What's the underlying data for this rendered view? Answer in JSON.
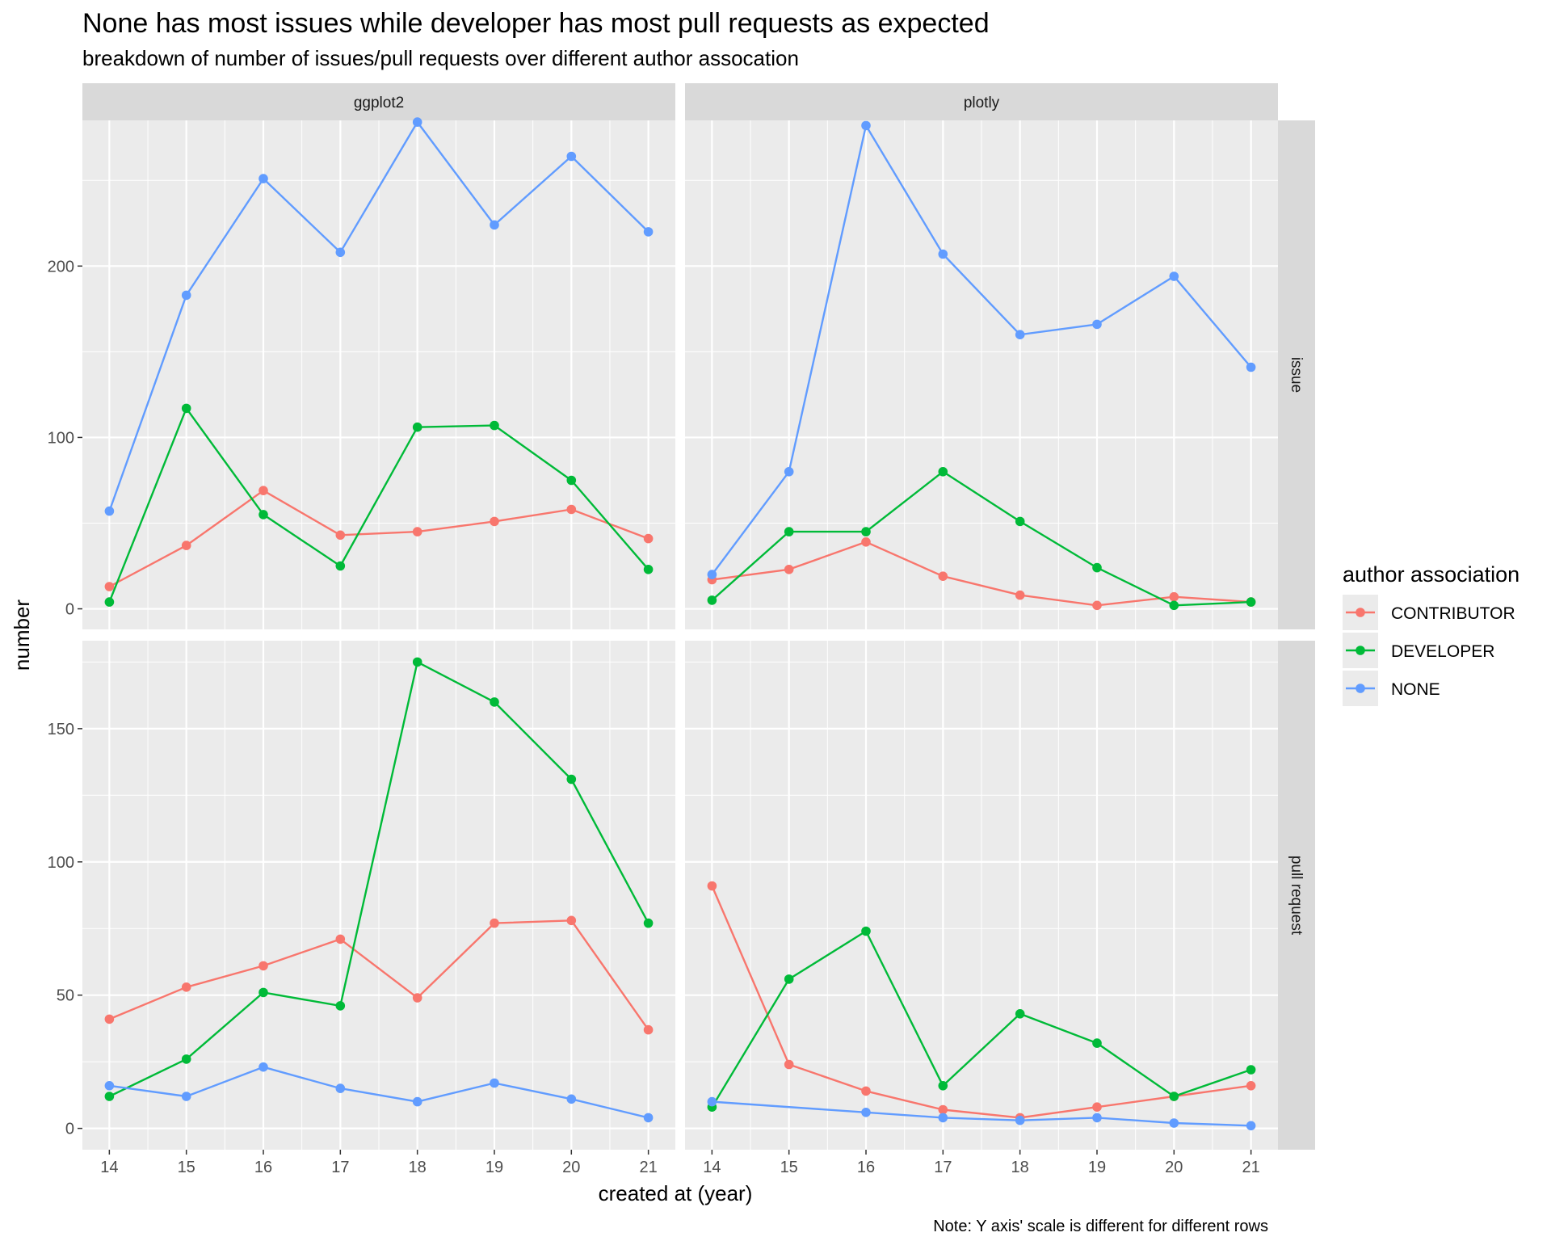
{
  "chart_data": {
    "type": "line",
    "title": "None has most issues while developer has most pull requests as expected",
    "subtitle": "breakdown of number of issues/pull requests over different author assocation",
    "xlabel": "created at (year)",
    "ylabel": "number",
    "caption": "Note: Y axis' scale is different for different rows",
    "legend": {
      "title": "author association",
      "placement": "right",
      "entries": [
        "CONTRIBUTOR",
        "DEVELOPER",
        "NONE"
      ]
    },
    "colors": {
      "CONTRIBUTOR": "#F8766D",
      "DEVELOPER": "#00BA38",
      "NONE": "#619CFF",
      "panel_background": "#EBEBEB",
      "strip_background": "#D9D9D9",
      "grid": "#FFFFFF"
    },
    "grid": true,
    "x": [
      14,
      15,
      16,
      17,
      18,
      19,
      20,
      21
    ],
    "xticks": [
      "14",
      "15",
      "16",
      "17",
      "18",
      "19",
      "20",
      "21"
    ],
    "facet_columns": [
      "ggplot2",
      "plotly"
    ],
    "facet_rows": [
      "issue",
      "pull request"
    ],
    "rows": [
      {
        "label": "issue",
        "ylim": [
          -12,
          285
        ],
        "yticks": [
          0,
          100,
          200
        ],
        "ytick_labels": [
          "0",
          "100",
          "200"
        ]
      },
      {
        "label": "pull request",
        "ylim": [
          -8,
          183
        ],
        "yticks": [
          0,
          50,
          100,
          150
        ],
        "ytick_labels": [
          "0",
          "50",
          "100",
          "150"
        ]
      }
    ],
    "panels": [
      {
        "column": "ggplot2",
        "row": "issue",
        "series": [
          {
            "name": "CONTRIBUTOR",
            "values": [
              13,
              37,
              69,
              43,
              45,
              51,
              58,
              41
            ]
          },
          {
            "name": "DEVELOPER",
            "values": [
              4,
              117,
              55,
              25,
              106,
              107,
              75,
              23
            ]
          },
          {
            "name": "NONE",
            "values": [
              57,
              183,
              251,
              208,
              284,
              224,
              264,
              220
            ]
          }
        ]
      },
      {
        "column": "plotly",
        "row": "issue",
        "series": [
          {
            "name": "CONTRIBUTOR",
            "values": [
              17,
              23,
              39,
              19,
              8,
              2,
              7,
              4
            ]
          },
          {
            "name": "DEVELOPER",
            "values": [
              5,
              45,
              45,
              80,
              51,
              24,
              2,
              4
            ]
          },
          {
            "name": "NONE",
            "values": [
              20,
              80,
              282,
              207,
              160,
              166,
              194,
              141
            ]
          }
        ]
      },
      {
        "column": "ggplot2",
        "row": "pull request",
        "series": [
          {
            "name": "CONTRIBUTOR",
            "values": [
              41,
              53,
              61,
              71,
              49,
              77,
              78,
              37
            ]
          },
          {
            "name": "DEVELOPER",
            "values": [
              12,
              26,
              51,
              46,
              175,
              160,
              131,
              77
            ]
          },
          {
            "name": "NONE",
            "values": [
              16,
              12,
              23,
              15,
              10,
              17,
              11,
              4
            ]
          }
        ]
      },
      {
        "column": "plotly",
        "row": "pull request",
        "series": [
          {
            "name": "CONTRIBUTOR",
            "values": [
              91,
              24,
              14,
              7,
              4,
              8,
              12,
              16
            ]
          },
          {
            "name": "DEVELOPER",
            "values": [
              8,
              56,
              74,
              16,
              43,
              32,
              12,
              22
            ]
          },
          {
            "name": "NONE",
            "values": [
              10,
              null,
              6,
              4,
              3,
              4,
              2,
              1
            ]
          }
        ]
      }
    ]
  }
}
